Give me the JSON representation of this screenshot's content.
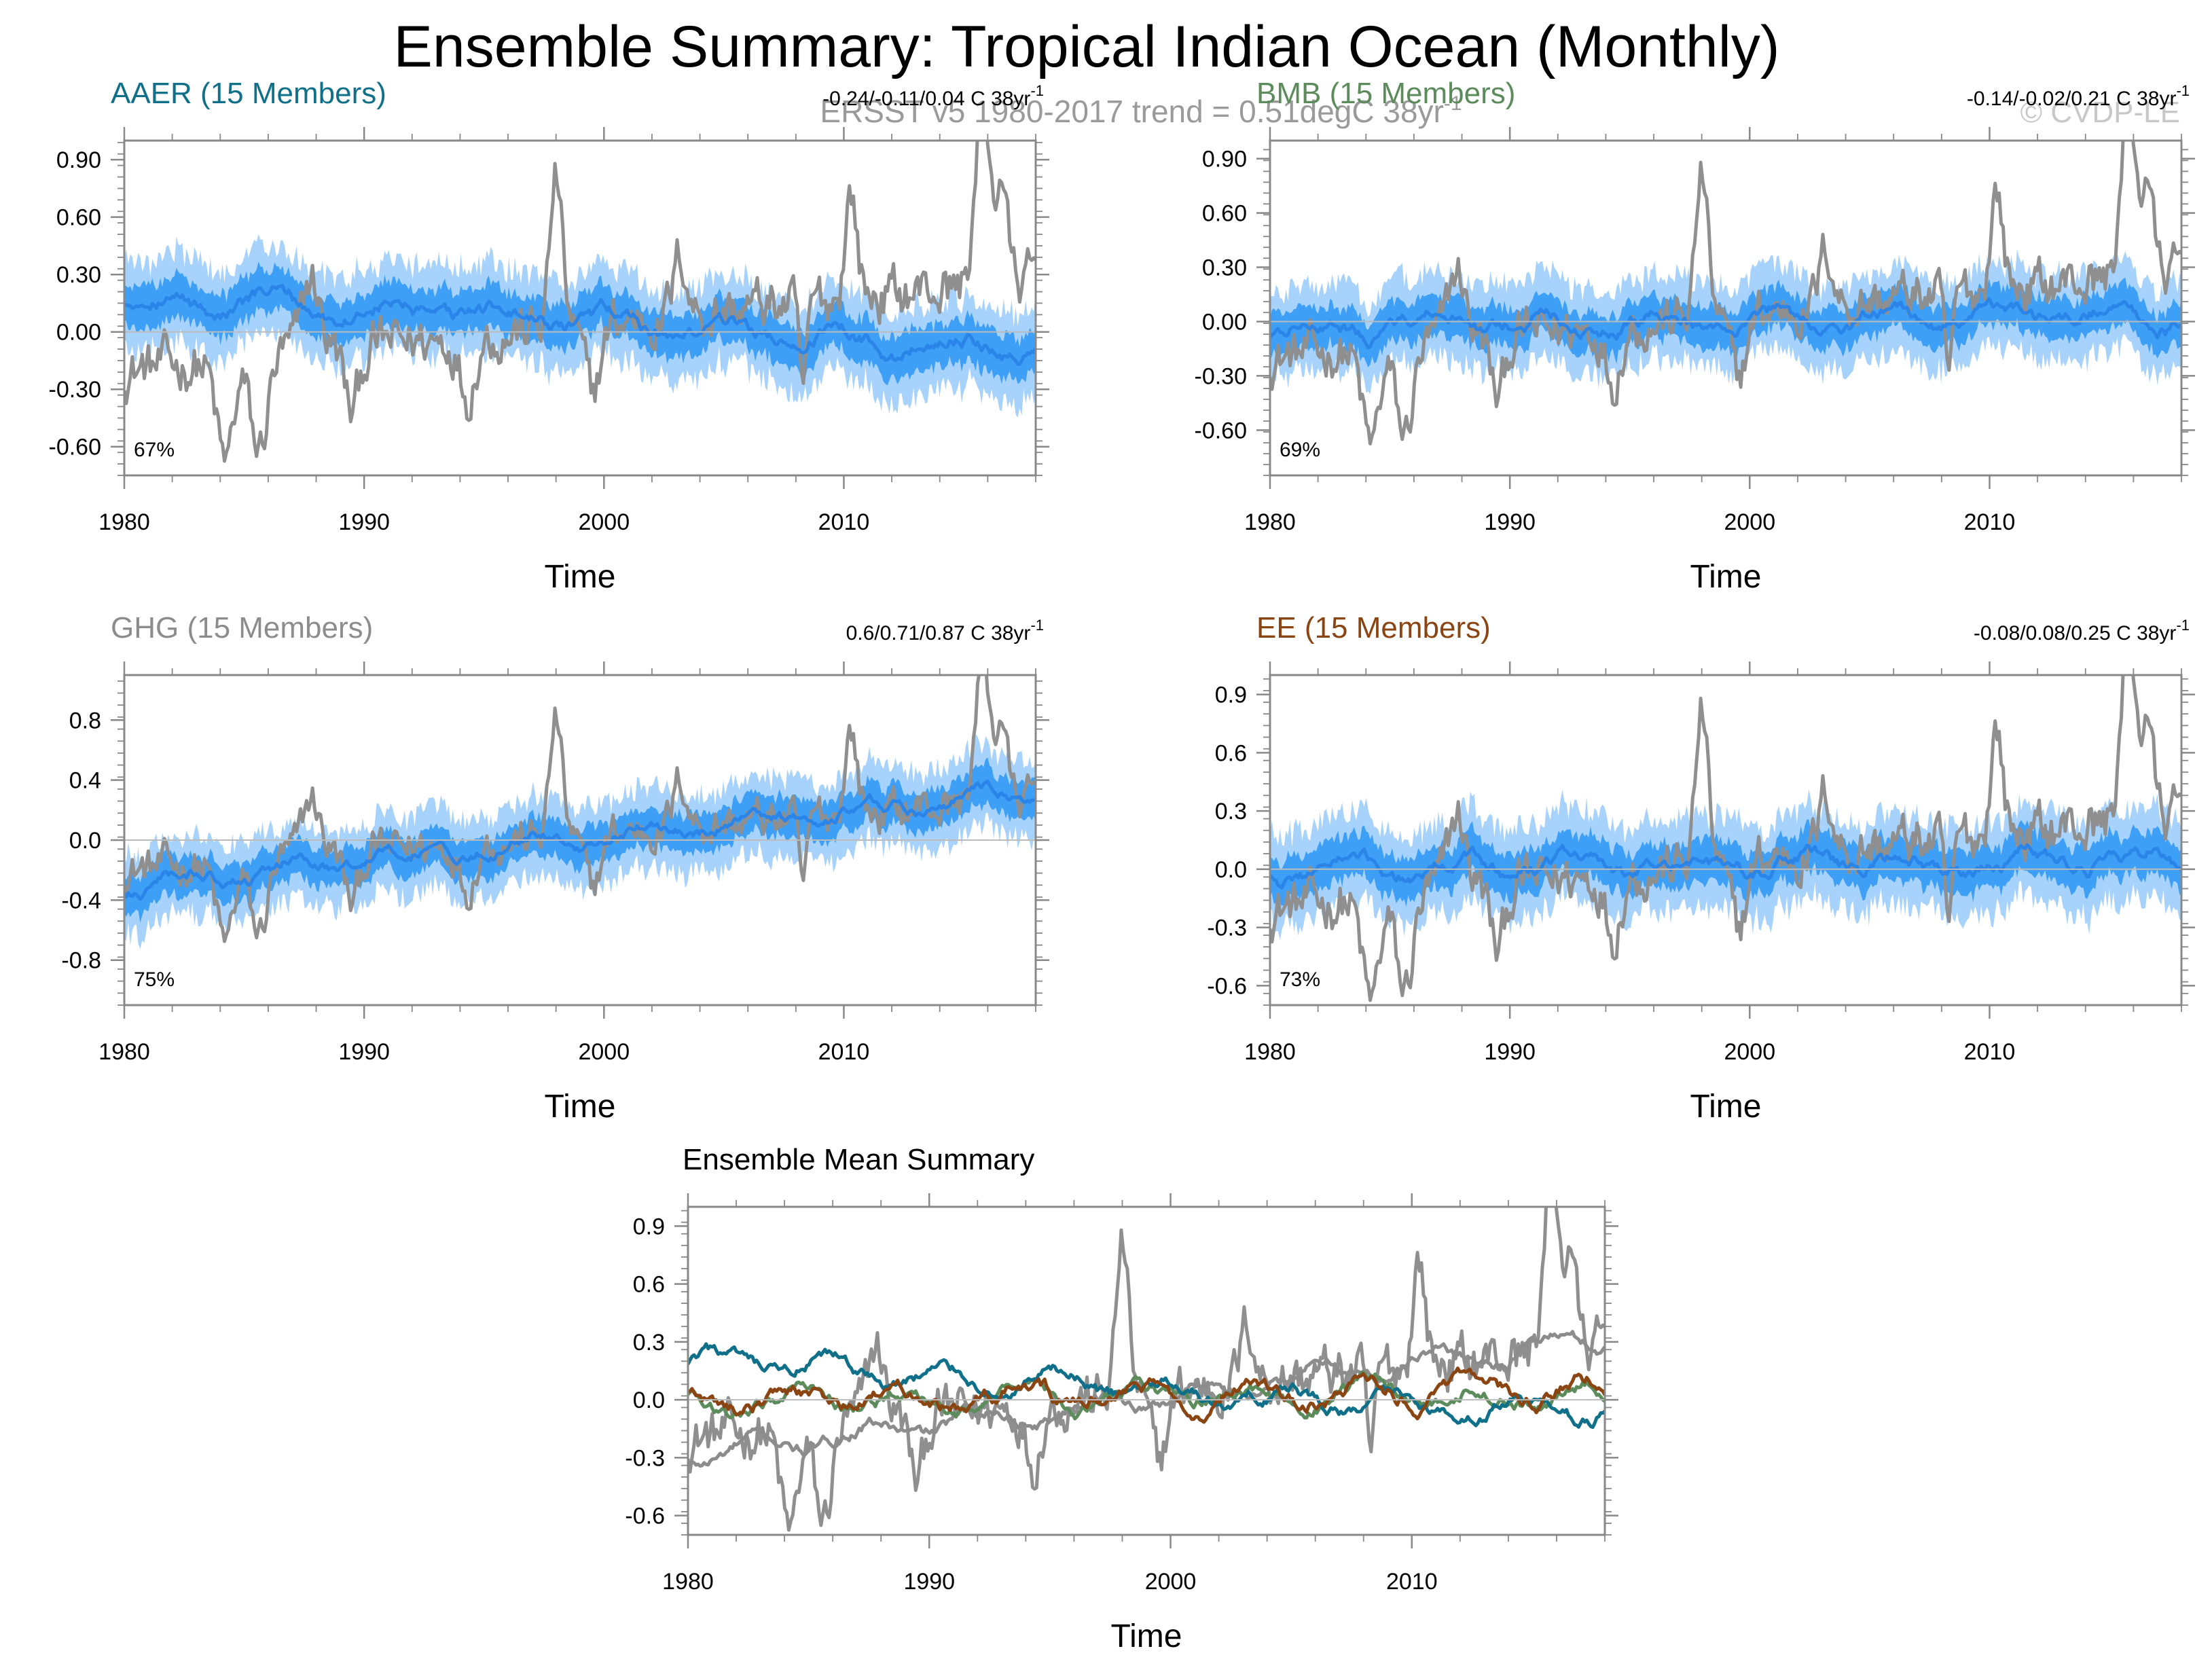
{
  "page": {
    "title": "Ensemble Summary: Tropical Indian Ocean (Monthly)",
    "subtitle": "ERSST v5 1980-2017 trend = 0.51degC 38yr",
    "subtitle_sup": "-1",
    "copyright": "© CVDP-LE"
  },
  "colors": {
    "outer_band": "#a6d2fb",
    "inner_band": "#3d9ff5",
    "ens_mean": "#2b85e8",
    "observed": "#8f8f8f",
    "frame": "#888888",
    "AAER": "#10708a",
    "BMB": "#5c8c5c",
    "GHG": "#8c8c8c",
    "EE": "#8b4513"
  },
  "chart_data": [
    {
      "type": "area",
      "id": "aaer",
      "title": "AAER (15 Members)",
      "trend": "-0.24/-0.11/0.04 C 38yr",
      "trend_sup": "-1",
      "pct": "67%",
      "xlabel": "Time",
      "xlim": [
        1980,
        2018
      ],
      "ylim": [
        -0.75,
        1.0
      ],
      "yticks": [
        -0.6,
        -0.3,
        0.0,
        0.3,
        0.6,
        0.9
      ],
      "yticklabels": [
        "-0.60",
        "-0.30",
        "0.00",
        "0.30",
        "0.60",
        "0.90"
      ],
      "xticks": [
        1980,
        1990,
        2000,
        2010
      ],
      "xticklabels": [
        "1980",
        "1990",
        "2000",
        "2010"
      ],
      "series": [
        {
          "name": "ensemble range",
          "kind": "band"
        },
        {
          "name": "inner range",
          "kind": "band"
        },
        {
          "name": "ensemble mean",
          "kind": "line",
          "start": 0.18,
          "end": -0.08
        },
        {
          "name": "ERSST v5",
          "kind": "line"
        }
      ]
    },
    {
      "type": "area",
      "id": "bmb",
      "title": "BMB (15 Members)",
      "trend": "-0.14/-0.02/0.21 C 38yr",
      "trend_sup": "-1",
      "pct": "69%",
      "xlabel": "Time",
      "xlim": [
        1980,
        2018
      ],
      "ylim": [
        -0.85,
        1.0
      ],
      "yticks": [
        -0.6,
        -0.3,
        0.0,
        0.3,
        0.6,
        0.9
      ],
      "yticklabels": [
        "-0.60",
        "-0.30",
        "0.00",
        "0.30",
        "0.60",
        "0.90"
      ],
      "xticks": [
        1980,
        1990,
        2000,
        2010
      ],
      "xticklabels": [
        "1980",
        "1990",
        "2000",
        "2010"
      ],
      "series": [
        {
          "name": "ensemble range",
          "kind": "band"
        },
        {
          "name": "inner range",
          "kind": "band"
        },
        {
          "name": "ensemble mean",
          "kind": "line",
          "start": -0.03,
          "end": 0.03
        },
        {
          "name": "ERSST v5",
          "kind": "line"
        }
      ]
    },
    {
      "type": "area",
      "id": "ghg",
      "title": "GHG (15 Members)",
      "trend": "0.6/0.71/0.87 C 38yr",
      "trend_sup": "-1",
      "pct": "75%",
      "xlabel": "Time",
      "xlim": [
        1980,
        2018
      ],
      "ylim": [
        -1.1,
        1.1
      ],
      "yticks": [
        -0.8,
        -0.4,
        0.0,
        0.4,
        0.8
      ],
      "yticklabels": [
        "-0.8",
        "-0.4",
        "0.0",
        "0.4",
        "0.8"
      ],
      "xticks": [
        1980,
        1990,
        2000,
        2010
      ],
      "xticklabels": [
        "1980",
        "1990",
        "2000",
        "2010"
      ],
      "series": [
        {
          "name": "ensemble range",
          "kind": "band"
        },
        {
          "name": "inner range",
          "kind": "band"
        },
        {
          "name": "ensemble mean",
          "kind": "line",
          "start": -0.3,
          "end": 0.32
        },
        {
          "name": "ERSST v5",
          "kind": "line"
        }
      ]
    },
    {
      "type": "area",
      "id": "ee",
      "title": "EE (15 Members)",
      "trend": "-0.08/0.08/0.25 C 38yr",
      "trend_sup": "-1",
      "pct": "73%",
      "xlabel": "Time",
      "xlim": [
        1980,
        2018
      ],
      "ylim": [
        -0.7,
        1.0
      ],
      "yticks": [
        -0.6,
        -0.3,
        0.0,
        0.3,
        0.6,
        0.9
      ],
      "yticklabels": [
        "-0.6",
        "-0.3",
        "0.0",
        "0.3",
        "0.6",
        "0.9"
      ],
      "xticks": [
        1980,
        1990,
        2000,
        2010
      ],
      "xticklabels": [
        "1980",
        "1990",
        "2000",
        "2010"
      ],
      "series": [
        {
          "name": "ensemble range",
          "kind": "band"
        },
        {
          "name": "inner range",
          "kind": "band"
        },
        {
          "name": "ensemble mean",
          "kind": "line",
          "start": 0.0,
          "end": 0.05
        },
        {
          "name": "ERSST v5",
          "kind": "line"
        }
      ]
    },
    {
      "type": "line",
      "id": "summary",
      "title": "Ensemble Mean Summary",
      "xlabel": "Time",
      "xlim": [
        1980,
        2018
      ],
      "ylim": [
        -0.7,
        1.0
      ],
      "yticks": [
        -0.6,
        -0.3,
        0.0,
        0.3,
        0.6,
        0.9
      ],
      "yticklabels": [
        "-0.6",
        "-0.3",
        "0.0",
        "0.3",
        "0.6",
        "0.9"
      ],
      "xticks": [
        1980,
        1990,
        2000,
        2010
      ],
      "xticklabels": [
        "1980",
        "1990",
        "2000",
        "2010"
      ],
      "series": [
        {
          "name": "ERSST v5",
          "color_key": "observed"
        },
        {
          "name": "GHG",
          "color_key": "GHG"
        },
        {
          "name": "BMB",
          "color_key": "BMB"
        },
        {
          "name": "AAER",
          "color_key": "AAER"
        },
        {
          "name": "EE",
          "color_key": "EE"
        }
      ]
    }
  ]
}
